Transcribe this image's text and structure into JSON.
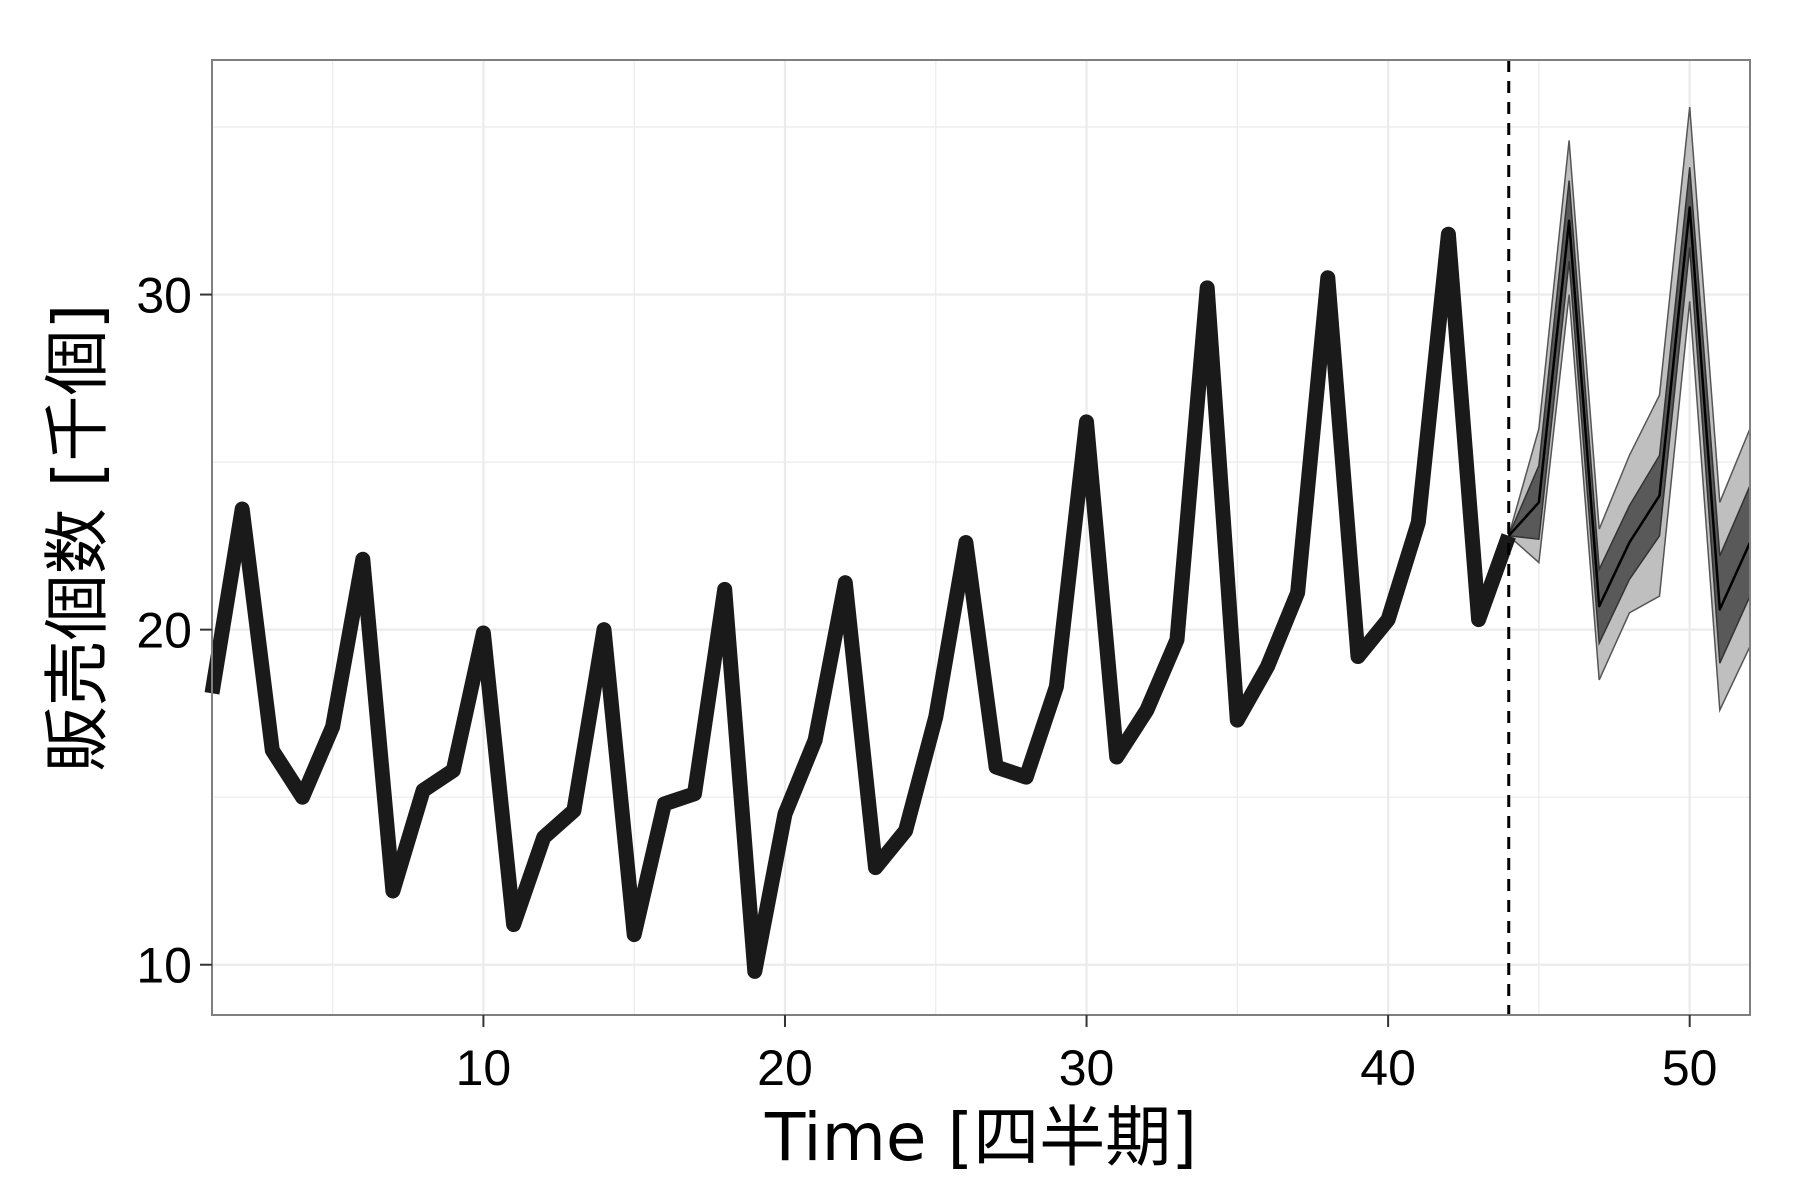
{
  "chart_data": {
    "type": "line",
    "title": "",
    "xlabel": "Time [四半期]",
    "ylabel": "販売個数 [千個]",
    "xlim": [
      1,
      52
    ],
    "ylim": [
      8.5,
      37
    ],
    "x_ticks": [
      10,
      20,
      30,
      40,
      50
    ],
    "y_ticks": [
      10,
      20,
      30
    ],
    "grid": true,
    "legend": "none",
    "forecast_start": 44,
    "colors": {
      "observed_line": "#1a1a1a",
      "forecast_line": "#000000",
      "band_inner": "#595959",
      "band_outer": "#bfbfbf",
      "forecast_start_line": "#000000",
      "panel_border": "#7f7f7f",
      "grid": "#ebebeb"
    },
    "series": [
      {
        "x": [
          1,
          2,
          3,
          4,
          5,
          6,
          7,
          8,
          9,
          10,
          11,
          12,
          13,
          14,
          15,
          16,
          17,
          18,
          19,
          20,
          21,
          22,
          23,
          24,
          25,
          26,
          27,
          28,
          29,
          30,
          31,
          32,
          33,
          34,
          35,
          36,
          37,
          38,
          39,
          40,
          41,
          42,
          43,
          44
        ],
        "values": [
          18.1,
          23.6,
          16.4,
          15.0,
          17.1,
          22.1,
          12.2,
          15.2,
          15.8,
          19.9,
          11.2,
          13.8,
          14.6,
          20.0,
          10.9,
          14.8,
          15.1,
          21.2,
          9.8,
          14.5,
          16.7,
          21.4,
          12.9,
          14.0,
          17.4,
          22.6,
          15.9,
          15.6,
          18.3,
          26.2,
          16.2,
          17.6,
          19.7,
          30.2,
          17.3,
          18.9,
          21.1,
          30.5,
          19.2,
          20.3,
          23.2,
          31.8,
          20.3,
          22.8
        ]
      }
    ],
    "forecast": {
      "x": [
        44,
        45,
        46,
        47,
        48,
        49,
        50,
        51,
        52
      ],
      "mean": [
        22.8,
        23.8,
        32.2,
        20.7,
        22.6,
        24.0,
        32.6,
        20.6,
        22.6
      ],
      "inner_lower": [
        22.8,
        22.7,
        31.0,
        19.6,
        21.5,
        22.8,
        31.4,
        19.0,
        21.0
      ],
      "inner_upper": [
        22.8,
        24.9,
        33.4,
        21.8,
        23.7,
        25.2,
        33.8,
        22.2,
        24.3
      ],
      "outer_lower": [
        22.8,
        22.0,
        30.0,
        18.5,
        20.5,
        21.0,
        29.8,
        17.6,
        19.5
      ],
      "outer_upper": [
        22.8,
        26.0,
        34.6,
        23.0,
        25.2,
        27.0,
        35.6,
        23.8,
        26.0
      ]
    }
  }
}
